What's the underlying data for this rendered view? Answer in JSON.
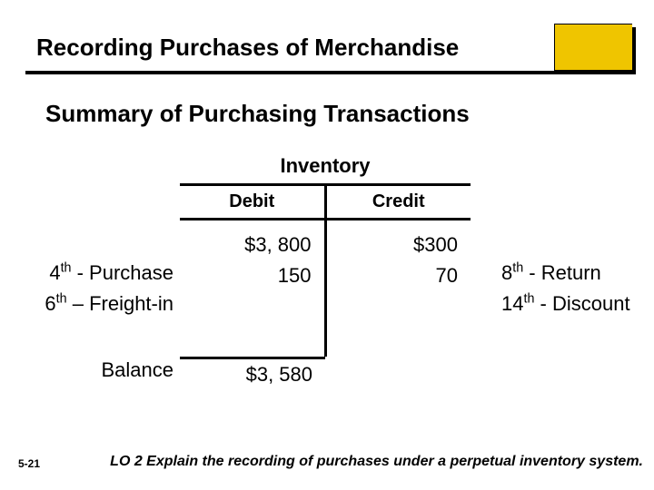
{
  "title": "Recording Purchases of Merchandise",
  "subtitle": "Summary of Purchasing Transactions",
  "account": {
    "name": "Inventory",
    "debit_header": "Debit",
    "credit_header": "Credit",
    "debits": [
      "$3, 800",
      "150"
    ],
    "credits": [
      "$300",
      "70"
    ],
    "balance": "$3, 580"
  },
  "left_labels": {
    "row1_prefix": "4",
    "row1_ord": "th",
    "row1_rest": " - Purchase",
    "row2_prefix": "6",
    "row2_ord": "th",
    "row2_rest": " – Freight-in"
  },
  "right_labels": {
    "row1_prefix": "8",
    "row1_ord": "th",
    "row1_rest": " - Return",
    "row2_prefix": "14",
    "row2_ord": "th",
    "row2_rest": " - Discount"
  },
  "balance_label": "Balance",
  "page_number": "5-21",
  "learning_objective": "LO 2  Explain the recording of purchases under a perpetual inventory system.",
  "colors": {
    "accent": "#efc500",
    "band_bg": "#ffffff",
    "shadow": "#000000",
    "text": "#000000"
  }
}
